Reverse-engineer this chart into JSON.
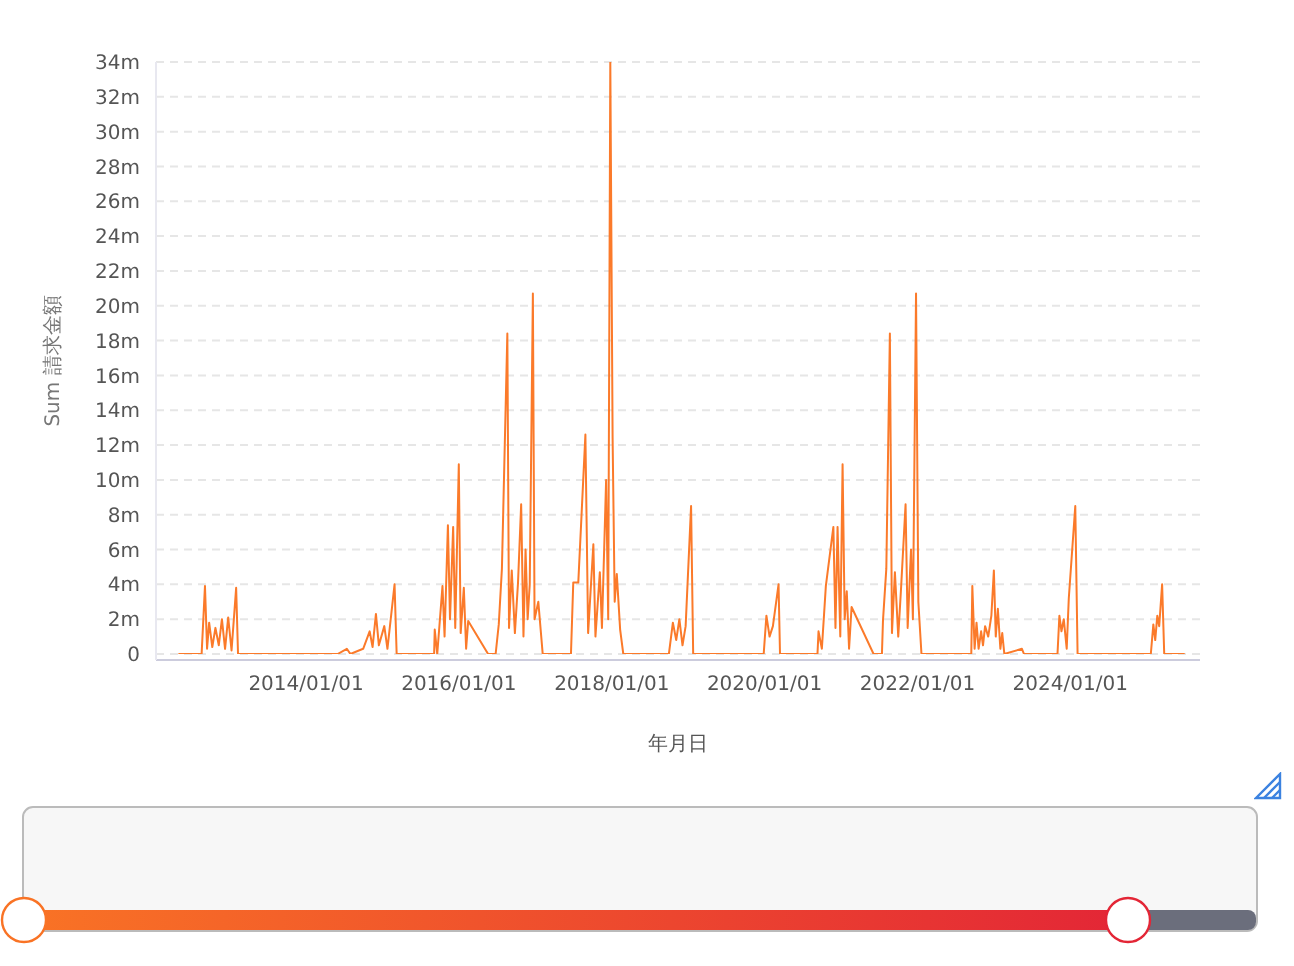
{
  "chart_data": {
    "type": "line",
    "xlabel": "年月日",
    "ylabel": "Sum 請求金額",
    "x": [
      "2012-05-01",
      "2012-08-20",
      "2012-09-05",
      "2012-09-15",
      "2012-09-25",
      "2012-10-10",
      "2012-10-25",
      "2012-11-10",
      "2012-11-25",
      "2012-12-10",
      "2012-12-25",
      "2013-01-10",
      "2013-02-01",
      "2013-02-10",
      "2014-06-01",
      "2014-07-15",
      "2014-08-01",
      "2014-10-01",
      "2014-11-01",
      "2014-11-15",
      "2014-12-01",
      "2014-12-15",
      "2015-01-10",
      "2015-01-25",
      "2015-02-28",
      "2015-03-10",
      "2015-09-05",
      "2015-09-08",
      "2015-09-20",
      "2015-10-15",
      "2015-10-25",
      "2015-11-10",
      "2015-11-20",
      "2015-12-05",
      "2015-12-15",
      "2016-01-01",
      "2016-01-10",
      "2016-01-25",
      "2016-02-05",
      "2016-02-15",
      "2016-05-20",
      "2016-06-25",
      "2016-07-10",
      "2016-07-25",
      "2016-08-20",
      "2016-08-28",
      "2016-09-10",
      "2016-09-25",
      "2016-10-10",
      "2016-10-25",
      "2016-11-05",
      "2016-11-15",
      "2016-11-25",
      "2016-12-05",
      "2016-12-20",
      "2016-12-28",
      "2017-01-15",
      "2017-02-05",
      "2017-06-20",
      "2017-07-01",
      "2017-07-25",
      "2017-08-28",
      "2017-09-10",
      "2017-10-05",
      "2017-10-15",
      "2017-11-05",
      "2017-11-15",
      "2017-12-05",
      "2017-12-15",
      "2017-12-25",
      "2018-01-05",
      "2018-01-15",
      "2018-01-25",
      "2018-02-10",
      "2018-02-25",
      "2018-10-01",
      "2018-10-20",
      "2018-11-05",
      "2018-11-20",
      "2018-12-05",
      "2018-12-20",
      "2019-01-15",
      "2019-01-25",
      "2019-12-28",
      "2020-01-10",
      "2020-01-25",
      "2020-02-10",
      "2020-03-08",
      "2020-03-15",
      "2020-09-10",
      "2020-09-15",
      "2020-10-01",
      "2020-10-20",
      "2020-11-25",
      "2020-12-05",
      "2020-12-15",
      "2020-12-28",
      "2021-01-08",
      "2021-01-18",
      "2021-01-28",
      "2021-02-08",
      "2021-02-20",
      "2021-06-05",
      "2021-07-15",
      "2021-07-20",
      "2021-08-05",
      "2021-08-22",
      "2021-09-01",
      "2021-09-15",
      "2021-10-01",
      "2021-10-15",
      "2021-11-05",
      "2021-11-15",
      "2021-12-01",
      "2021-12-10",
      "2021-12-25",
      "2022-01-05",
      "2022-01-20",
      "2022-09-15",
      "2022-09-20",
      "2022-10-01",
      "2022-10-10",
      "2022-10-20",
      "2022-11-01",
      "2022-11-10",
      "2022-11-20",
      "2022-12-05",
      "2022-12-20",
      "2023-01-01",
      "2023-01-10",
      "2023-01-20",
      "2023-02-01",
      "2023-02-10",
      "2023-02-20",
      "2023-05-15",
      "2023-05-25",
      "2023-11-01",
      "2023-11-10",
      "2023-11-20",
      "2023-12-01",
      "2023-12-15",
      "2023-12-25",
      "2024-01-25",
      "2024-02-05",
      "2025-01-20",
      "2025-02-01",
      "2025-02-10",
      "2025-02-20",
      "2025-03-01",
      "2025-03-15",
      "2025-03-25",
      "2025-07-01"
    ],
    "series": [
      {
        "color": "#fb7a2a",
        "values": [
          0,
          0,
          3.9,
          0.3,
          1.8,
          0.4,
          1.5,
          0.5,
          2.0,
          0.3,
          2.1,
          0.2,
          3.8,
          0,
          0,
          0.3,
          0,
          0.3,
          1.3,
          0.4,
          2.3,
          0.5,
          1.6,
          0.3,
          4.0,
          0,
          0,
          1.4,
          0,
          3.9,
          1.0,
          7.4,
          2.0,
          7.3,
          1.5,
          10.9,
          1.2,
          3.8,
          0.3,
          1.9,
          0,
          0,
          1.7,
          4.9,
          18.4,
          1.5,
          4.8,
          1.2,
          4.1,
          8.6,
          1.0,
          6.0,
          2.0,
          4.0,
          20.7,
          2.0,
          3.0,
          0,
          0,
          4.1,
          4.1,
          12.6,
          1.2,
          6.3,
          1.0,
          4.7,
          1.5,
          10.0,
          2.0,
          34.0,
          12.4,
          3.0,
          4.6,
          1.4,
          0,
          0,
          1.8,
          0.8,
          2.0,
          0.5,
          1.6,
          8.5,
          0,
          0,
          2.2,
          1.0,
          1.6,
          4.0,
          0,
          0,
          1.3,
          0.3,
          3.9,
          7.3,
          1.5,
          7.3,
          1.0,
          10.9,
          2.0,
          3.6,
          0.3,
          2.7,
          0,
          0,
          1.9,
          4.9,
          18.4,
          1.2,
          4.7,
          1.0,
          3.9,
          8.6,
          1.5,
          6.0,
          2.0,
          20.7,
          3.0,
          0,
          0,
          3.9,
          0.3,
          1.8,
          0.3,
          1.3,
          0.5,
          1.6,
          1.0,
          2.2,
          4.8,
          1.0,
          2.6,
          0.3,
          1.2,
          0,
          0.3,
          0,
          0,
          2.2,
          1.3,
          2.0,
          0.3,
          3.2,
          8.5,
          0,
          0,
          1.7,
          0.8,
          2.2,
          1.6,
          4.0,
          0,
          0
        ]
      }
    ],
    "xlim": [
      "2012-01-15",
      "2025-09-12"
    ],
    "xticks": [
      {
        "value": "2014-01-01",
        "label": "2014/01/01"
      },
      {
        "value": "2016-01-01",
        "label": "2016/01/01"
      },
      {
        "value": "2018-01-01",
        "label": "2018/01/01"
      },
      {
        "value": "2020-01-01",
        "label": "2020/01/01"
      },
      {
        "value": "2022-01-01",
        "label": "2022/01/01"
      },
      {
        "value": "2024-01-01",
        "label": "2024/01/01"
      }
    ],
    "ylim": [
      0,
      34
    ],
    "yticks": [
      0,
      {
        "value": 2,
        "label": "2m"
      },
      {
        "value": 4,
        "label": "4m"
      },
      {
        "value": 6,
        "label": "6m"
      },
      {
        "value": 8,
        "label": "8m"
      },
      {
        "value": 10,
        "label": "10m"
      },
      {
        "value": 12,
        "label": "12m"
      },
      {
        "value": 14,
        "label": "14m"
      },
      {
        "value": 16,
        "label": "16m"
      },
      {
        "value": 18,
        "label": "18m"
      },
      {
        "value": 20,
        "label": "20m"
      },
      {
        "value": 22,
        "label": "22m"
      },
      {
        "value": 24,
        "label": "24m"
      },
      {
        "value": 26,
        "label": "26m"
      },
      {
        "value": 28,
        "label": "28m"
      },
      {
        "value": 30,
        "label": "30m"
      },
      {
        "value": 32,
        "label": "32m"
      },
      {
        "value": 34,
        "label": "34m"
      }
    ],
    "grid": "y",
    "legend": false,
    "marker": "none",
    "line_style": "solid"
  }
}
